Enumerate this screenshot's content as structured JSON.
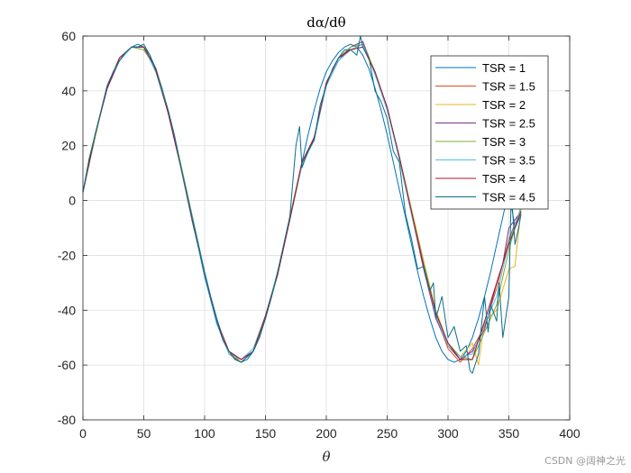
{
  "chart_data": {
    "type": "line",
    "title": "dα/dθ",
    "xlabel": "θ",
    "ylabel": "",
    "xlim": [
      0,
      400
    ],
    "ylim": [
      -80,
      60
    ],
    "xticks": [
      0,
      50,
      100,
      150,
      200,
      250,
      300,
      350,
      400
    ],
    "yticks": [
      -80,
      -60,
      -40,
      -20,
      0,
      20,
      40,
      60
    ],
    "grid": true,
    "legend_position": "top-right",
    "series": [
      {
        "name": "TSR = 1",
        "color": "#0072BD",
        "x": [
          0,
          5,
          10,
          15,
          20,
          25,
          30,
          35,
          40,
          45,
          50,
          55,
          60,
          65,
          70,
          75,
          80,
          85,
          90,
          95,
          100,
          105,
          110,
          115,
          120,
          125,
          130,
          135,
          140,
          145,
          150,
          155,
          160,
          165,
          170,
          175,
          180,
          185,
          190,
          195,
          200,
          205,
          210,
          215,
          220,
          225,
          230,
          235,
          240,
          245,
          250,
          255,
          260,
          265,
          270,
          275,
          280,
          285,
          290,
          295,
          300,
          305,
          310,
          315,
          320,
          325,
          330,
          335,
          340,
          345,
          350,
          355,
          360
        ],
        "y": [
          3,
          15,
          24,
          33,
          41,
          47,
          51,
          54,
          56,
          57,
          56,
          53,
          48,
          41,
          33,
          24,
          14,
          4,
          -6,
          -16,
          -26,
          -35,
          -43,
          -50,
          -55,
          -58,
          -59,
          -58,
          -55,
          -50,
          -43,
          -35,
          -26,
          -16,
          -6,
          4,
          14,
          24,
          33,
          41,
          47,
          51,
          54,
          56,
          57,
          56,
          53,
          48,
          41,
          33,
          24,
          14,
          4,
          -6,
          -16,
          -26,
          -35,
          -43,
          -50,
          -55,
          -58,
          -59,
          -58,
          -55,
          -50,
          -43,
          -35,
          -26,
          -16,
          -6,
          4,
          -10,
          -5
        ]
      },
      {
        "name": "TSR = 1.5",
        "color": "#D95319",
        "x": [
          0,
          10,
          20,
          30,
          40,
          50,
          60,
          70,
          80,
          90,
          100,
          110,
          120,
          130,
          140,
          150,
          160,
          170,
          180,
          190,
          200,
          210,
          220,
          230,
          240,
          250,
          260,
          270,
          280,
          290,
          300,
          310,
          320,
          330,
          340,
          350,
          360
        ],
        "y": [
          3,
          24,
          42,
          52,
          56,
          56,
          47,
          33,
          14,
          -7,
          -27,
          -44,
          -56,
          -59,
          -55,
          -43,
          -27,
          -7,
          14,
          22,
          43,
          52,
          55,
          57,
          47,
          34,
          15,
          -4,
          -24,
          -42,
          -54,
          -59,
          -54,
          -46,
          -32,
          -14,
          -3
        ]
      },
      {
        "name": "TSR = 2",
        "color": "#EDB120",
        "x": [
          0,
          10,
          20,
          30,
          40,
          50,
          60,
          70,
          80,
          90,
          100,
          110,
          120,
          130,
          140,
          150,
          160,
          170,
          180,
          190,
          200,
          210,
          220,
          230,
          240,
          250,
          260,
          270,
          280,
          290,
          300,
          310,
          320,
          325,
          330,
          340,
          350,
          355,
          360
        ],
        "y": [
          3,
          23,
          42,
          52,
          56,
          56,
          48,
          33,
          13,
          -7,
          -28,
          -44,
          -55,
          -58,
          -54,
          -42,
          -26,
          -6,
          14,
          22,
          43,
          52,
          56,
          58,
          47,
          33,
          16,
          -3,
          -22,
          -40,
          -52,
          -57,
          -52,
          -60,
          -44,
          -40,
          -25,
          -24,
          -3
        ]
      },
      {
        "name": "TSR = 2.5",
        "color": "#7E2F8E",
        "x": [
          0,
          10,
          20,
          30,
          40,
          50,
          60,
          70,
          80,
          90,
          100,
          110,
          120,
          130,
          140,
          150,
          160,
          170,
          180,
          190,
          200,
          210,
          220,
          230,
          240,
          250,
          260,
          270,
          280,
          290,
          300,
          310,
          320,
          330,
          340,
          345,
          350,
          360
        ],
        "y": [
          3,
          24,
          41,
          51,
          56,
          56,
          47,
          32,
          13,
          -8,
          -27,
          -45,
          -55,
          -58,
          -55,
          -43,
          -27,
          -7,
          13,
          23,
          42,
          51,
          56,
          58,
          46,
          34,
          15,
          -5,
          -25,
          -43,
          -53,
          -58,
          -55,
          -47,
          -30,
          -23,
          -10,
          -4
        ]
      },
      {
        "name": "TSR = 3",
        "color": "#77AC30",
        "x": [
          0,
          10,
          20,
          30,
          40,
          50,
          60,
          70,
          80,
          90,
          100,
          110,
          120,
          130,
          140,
          150,
          160,
          170,
          180,
          190,
          200,
          210,
          220,
          230,
          240,
          250,
          260,
          270,
          280,
          290,
          300,
          310,
          320,
          330,
          340,
          350,
          360
        ],
        "y": [
          3,
          23,
          42,
          52,
          56,
          55,
          48,
          33,
          14,
          -6,
          -27,
          -44,
          -55,
          -59,
          -55,
          -43,
          -27,
          -6,
          14,
          23,
          43,
          52,
          56,
          57,
          47,
          33,
          16,
          -4,
          -23,
          -41,
          -52,
          -57,
          -58,
          -48,
          -38,
          -18,
          -2
        ]
      },
      {
        "name": "TSR = 3.5",
        "color": "#4DBEEE",
        "x": [
          0,
          10,
          20,
          30,
          40,
          50,
          60,
          70,
          80,
          90,
          100,
          110,
          120,
          130,
          140,
          150,
          160,
          170,
          180,
          190,
          200,
          210,
          220,
          230,
          240,
          250,
          260,
          270,
          280,
          290,
          300,
          310,
          320,
          330,
          340,
          350,
          360
        ],
        "y": [
          3,
          24,
          42,
          51,
          56,
          56,
          47,
          33,
          13,
          -7,
          -28,
          -45,
          -56,
          -58,
          -54,
          -42,
          -26,
          -7,
          13,
          22,
          42,
          51,
          55,
          57,
          46,
          33,
          15,
          -5,
          -24,
          -42,
          -53,
          -57,
          -56,
          -45,
          -35,
          -15,
          -3
        ]
      },
      {
        "name": "TSR = 4",
        "color": "#A2142F",
        "x": [
          0,
          10,
          20,
          30,
          40,
          50,
          60,
          70,
          80,
          90,
          100,
          110,
          120,
          130,
          140,
          150,
          160,
          170,
          180,
          190,
          200,
          210,
          220,
          230,
          240,
          250,
          260,
          270,
          280,
          290,
          300,
          310,
          320,
          330,
          340,
          350,
          360
        ],
        "y": [
          3,
          24,
          41,
          52,
          56,
          56,
          48,
          32,
          13,
          -7,
          -27,
          -44,
          -55,
          -58,
          -55,
          -42,
          -27,
          -7,
          14,
          23,
          43,
          52,
          55,
          56,
          47,
          34,
          16,
          -4,
          -24,
          -41,
          -52,
          -58,
          -58,
          -44,
          -30,
          -16,
          -4
        ]
      },
      {
        "name": "TSR = 4.5",
        "color": "#0B6E8A",
        "x": [
          0,
          5,
          10,
          15,
          20,
          25,
          30,
          35,
          40,
          45,
          50,
          55,
          60,
          65,
          70,
          75,
          80,
          85,
          90,
          95,
          100,
          105,
          110,
          115,
          120,
          125,
          130,
          135,
          140,
          145,
          150,
          155,
          160,
          165,
          170,
          175,
          178,
          180,
          185,
          190,
          195,
          200,
          205,
          210,
          215,
          220,
          225,
          228,
          230,
          235,
          240,
          245,
          250,
          255,
          260,
          265,
          270,
          275,
          280,
          285,
          288,
          290,
          295,
          300,
          305,
          310,
          315,
          318,
          320,
          325,
          330,
          333,
          335,
          340,
          342,
          345,
          350,
          352,
          355,
          358,
          360
        ],
        "y": [
          3,
          15,
          24,
          33,
          42,
          47,
          51,
          54,
          56,
          56,
          57,
          53,
          47,
          40,
          33,
          24,
          13,
          3,
          -7,
          -17,
          -27,
          -36,
          -44,
          -51,
          -55,
          -58,
          -59,
          -57,
          -55,
          -50,
          -43,
          -35,
          -26,
          -16,
          -6,
          20,
          27,
          12,
          18,
          22,
          35,
          42,
          48,
          52,
          55,
          55,
          53,
          60,
          56,
          52,
          40,
          36,
          30,
          18,
          14,
          -5,
          -14,
          -25,
          -24,
          -33,
          -30,
          -43,
          -35,
          -50,
          -46,
          -55,
          -53,
          -62,
          -63,
          -56,
          -35,
          -48,
          -38,
          -44,
          -30,
          -50,
          -35,
          3,
          -16,
          -10,
          -5
        ]
      }
    ]
  }
}
